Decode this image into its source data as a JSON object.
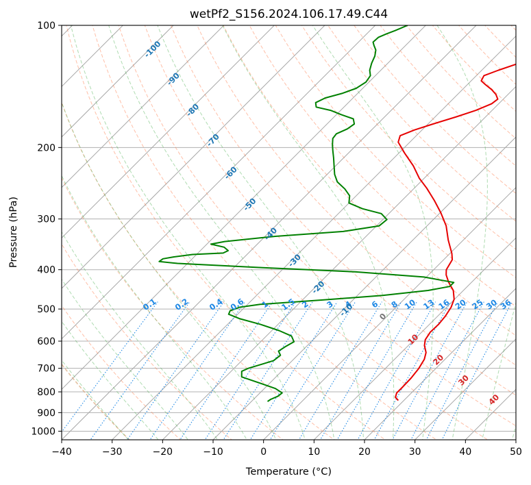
{
  "chart_data": {
    "type": "line",
    "title": "wetPf2_S156.2024.106.17.49.C44",
    "xlabel": "Temperature (°C)",
    "ylabel": "Pressure (hPa)",
    "xlim": [
      -40,
      50
    ],
    "ylim": [
      1050,
      100
    ],
    "y_scale": "log",
    "skew": 45,
    "grid": true,
    "x_ticks": [
      -40,
      -30,
      -20,
      -10,
      0,
      10,
      20,
      30,
      40,
      50
    ],
    "y_ticks": [
      100,
      200,
      300,
      400,
      500,
      600,
      700,
      800,
      900,
      1000
    ],
    "series": [
      {
        "key": "temperature",
        "color": "#e60000",
        "points": [
          [
            18.9,
            840
          ],
          [
            17.7,
            825
          ],
          [
            17.1,
            805
          ],
          [
            17.1,
            780
          ],
          [
            17.0,
            740
          ],
          [
            16.6,
            700
          ],
          [
            15.9,
            665
          ],
          [
            14.9,
            640
          ],
          [
            13.2,
            615
          ],
          [
            12.2,
            595
          ],
          [
            11.7,
            570
          ],
          [
            11.8,
            545
          ],
          [
            11.5,
            520
          ],
          [
            10.9,
            495
          ],
          [
            9.9,
            473
          ],
          [
            8.0,
            450
          ],
          [
            5.5,
            430
          ],
          [
            3.5,
            412
          ],
          [
            2.5,
            400
          ],
          [
            1.7,
            378
          ],
          [
            0.4,
            365
          ],
          [
            -3.0,
            338
          ],
          [
            -6.2,
            312
          ],
          [
            -9.8,
            290
          ],
          [
            -13.6,
            270
          ],
          [
            -17.5,
            252
          ],
          [
            -21.0,
            238
          ],
          [
            -24.6,
            222
          ],
          [
            -28.7,
            207
          ],
          [
            -32.3,
            194
          ],
          [
            -33.2,
            187
          ],
          [
            -31.5,
            181
          ],
          [
            -29.0,
            175
          ],
          [
            -25.8,
            168
          ],
          [
            -23.2,
            162
          ],
          [
            -21.4,
            156
          ],
          [
            -21.1,
            152
          ],
          [
            -22.4,
            148
          ],
          [
            -24.2,
            144
          ],
          [
            -26.4,
            140
          ],
          [
            -28.0,
            137
          ],
          [
            -28.5,
            133
          ],
          [
            -26.7,
            129
          ],
          [
            -24.0,
            124
          ],
          [
            -21.0,
            119
          ],
          [
            -19.7,
            114
          ],
          [
            -18.5,
            109
          ],
          [
            -17.6,
            104
          ],
          [
            -17.2,
            100
          ]
        ]
      },
      {
        "key": "dewpoint",
        "color": "#008000",
        "points": [
          [
            -6.8,
            845
          ],
          [
            -6.6,
            835
          ],
          [
            -5.8,
            820
          ],
          [
            -5.6,
            805
          ],
          [
            -7.8,
            785
          ],
          [
            -12.2,
            760
          ],
          [
            -16.8,
            735
          ],
          [
            -17.9,
            712
          ],
          [
            -17.2,
            700
          ],
          [
            -15.3,
            684
          ],
          [
            -13.7,
            670
          ],
          [
            -13.4,
            650
          ],
          [
            -14.6,
            635
          ],
          [
            -14.1,
            618
          ],
          [
            -13.4,
            602
          ],
          [
            -15.0,
            583
          ],
          [
            -18.6,
            565
          ],
          [
            -23.6,
            545
          ],
          [
            -28.8,
            528
          ],
          [
            -31.8,
            515
          ],
          [
            -32.2,
            505
          ],
          [
            -31.0,
            495
          ],
          [
            -27.5,
            487
          ],
          [
            -16.0,
            475
          ],
          [
            -5.0,
            463
          ],
          [
            3.0,
            450
          ],
          [
            6.5,
            440
          ],
          [
            6.5,
            430
          ],
          [
            -0.5,
            417
          ],
          [
            -15.0,
            405
          ],
          [
            -35.0,
            395
          ],
          [
            -52.0,
            386
          ],
          [
            -56.0,
            382
          ],
          [
            -55.8,
            376
          ],
          [
            -54.0,
            372
          ],
          [
            -50.8,
            367
          ],
          [
            -45.0,
            364
          ],
          [
            -44.5,
            359
          ],
          [
            -46.0,
            352
          ],
          [
            -49.2,
            346
          ],
          [
            -47.0,
            341
          ],
          [
            -38.0,
            331
          ],
          [
            -25.5,
            322
          ],
          [
            -19.5,
            312
          ],
          [
            -19.2,
            301
          ],
          [
            -21.5,
            291
          ],
          [
            -26.2,
            283
          ],
          [
            -30.0,
            274
          ],
          [
            -31.3,
            263
          ],
          [
            -33.6,
            253
          ],
          [
            -36.5,
            243
          ],
          [
            -38.5,
            233
          ],
          [
            -40.3,
            222
          ],
          [
            -42.0,
            212
          ],
          [
            -43.5,
            204
          ],
          [
            -44.8,
            197
          ],
          [
            -46.0,
            190
          ],
          [
            -46.2,
            185
          ],
          [
            -45.0,
            180
          ],
          [
            -44.6,
            175
          ],
          [
            -45.8,
            170
          ],
          [
            -49.0,
            166
          ],
          [
            -52.0,
            162
          ],
          [
            -55.5,
            159
          ],
          [
            -56.5,
            155
          ],
          [
            -55.5,
            151
          ],
          [
            -53.0,
            147
          ],
          [
            -51.3,
            143
          ],
          [
            -50.6,
            138
          ],
          [
            -51.0,
            133
          ],
          [
            -52.2,
            129
          ],
          [
            -53.2,
            124
          ],
          [
            -54.0,
            119
          ],
          [
            -55.0,
            115
          ],
          [
            -56.3,
            112
          ],
          [
            -57.1,
            110
          ],
          [
            -57.0,
            107
          ],
          [
            -56.1,
            105
          ],
          [
            -55.0,
            103
          ],
          [
            -53.6,
            100
          ]
        ]
      }
    ],
    "dry_adiabat_labels": [
      -100,
      -90,
      -80,
      -70,
      -60,
      -50,
      -40,
      -30,
      -20,
      -10
    ],
    "moist_adiabat_labels": [
      0,
      10,
      20,
      30,
      40
    ],
    "mixing_ratio_labels": [
      "0.1",
      "0.2",
      "0.4",
      "0.6",
      "1",
      "1.5",
      "2",
      "3",
      "4",
      "6",
      "8",
      "10",
      "13",
      "16",
      "20",
      "25",
      "30",
      "36"
    ],
    "colors": {
      "dry_adiabat": "#ff7f50",
      "moist_adiabat": "#4caf50",
      "mixing_ratio": "#1e88e5",
      "isotherm": "#888888"
    }
  }
}
